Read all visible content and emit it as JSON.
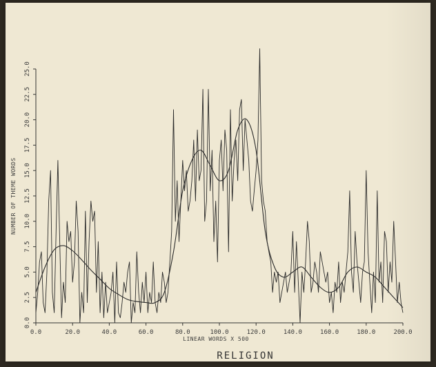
{
  "chart_data": {
    "type": "line",
    "title": "RELIGION",
    "xlabel": "LINEAR WORDS X 500",
    "ylabel": "NUMBER OF THEME WORDS",
    "xlim": [
      0,
      200
    ],
    "ylim": [
      0,
      25
    ],
    "xticks": [
      0,
      20,
      40,
      60,
      80,
      100,
      120,
      140,
      160,
      180,
      200
    ],
    "xtick_labels": [
      "0.0",
      "20.0",
      "40.0",
      "60.0",
      "80.0",
      "100.0",
      "120.0",
      "140.0",
      "160.0",
      "180.0",
      "200.0"
    ],
    "yticks": [
      0,
      2.5,
      5,
      7.5,
      10,
      12.5,
      15,
      17.5,
      20,
      22.5,
      25
    ],
    "ytick_labels": [
      "0.0",
      "2.5",
      "5.0",
      "7.5",
      "10.0",
      "12.5",
      "15.0",
      "17.5",
      "20.0",
      "22.5",
      "25.0"
    ],
    "grid": false,
    "series": [
      {
        "x": [
          0,
          1,
          2,
          3,
          4,
          5,
          6,
          7,
          8,
          9,
          10,
          11,
          12,
          13,
          14,
          15,
          16,
          17,
          18,
          19,
          20,
          21,
          22,
          23,
          24,
          25,
          26,
          27,
          28,
          29,
          30,
          31,
          32,
          33,
          34,
          35,
          36,
          37,
          38,
          39,
          40,
          41,
          42,
          43,
          44,
          45,
          46,
          47,
          48,
          49,
          50,
          51,
          52,
          53,
          54,
          55,
          56,
          57,
          58,
          59,
          60,
          61,
          62,
          63,
          64,
          65,
          66,
          67,
          68,
          69,
          70,
          71,
          72,
          73,
          74,
          75,
          76,
          77,
          78,
          79,
          80,
          81,
          82,
          83,
          84,
          85,
          86,
          87,
          88,
          89,
          90,
          91,
          92,
          93,
          94,
          95,
          96,
          97,
          98,
          99,
          100,
          101,
          102,
          103,
          104,
          105,
          106,
          107,
          108,
          109,
          110,
          111,
          112,
          113,
          114,
          115,
          116,
          117,
          118,
          119,
          120,
          121,
          122,
          123,
          124,
          125,
          126,
          127,
          128,
          129,
          130,
          131,
          132,
          133,
          134,
          135,
          136,
          137,
          138,
          139,
          140,
          141,
          142,
          143,
          144,
          145,
          146,
          147,
          148,
          149,
          150,
          151,
          152,
          153,
          154,
          155,
          156,
          157,
          158,
          159,
          160,
          161,
          162,
          163,
          164,
          165,
          166,
          167,
          168,
          169,
          170,
          171,
          172,
          173,
          174,
          175,
          176,
          177,
          178,
          179,
          180,
          181,
          182,
          183,
          184,
          185,
          186,
          187,
          188,
          189,
          190,
          191,
          192,
          193,
          194,
          195,
          196,
          197,
          198,
          199,
          200
        ],
        "values": [
          1,
          3,
          6,
          7,
          2,
          1,
          5,
          12,
          15,
          3,
          1,
          9,
          16,
          8,
          0.5,
          4,
          2,
          10,
          8,
          9,
          4,
          6,
          12,
          9,
          0,
          3,
          1,
          11,
          2,
          8,
          12,
          10,
          11,
          3,
          8,
          1,
          5,
          0.5,
          4,
          1,
          2,
          3,
          5,
          0,
          6,
          1,
          0.5,
          2,
          4,
          3,
          5,
          6,
          0,
          2,
          1,
          7,
          3,
          1,
          4,
          2,
          5,
          1,
          3,
          2,
          6,
          2,
          1,
          3,
          2,
          5,
          4,
          2,
          3,
          6,
          9,
          21,
          10,
          14,
          8,
          12,
          16,
          13,
          15,
          11,
          12,
          14,
          18,
          12,
          19,
          14,
          15,
          23,
          10,
          12,
          23,
          13,
          17,
          8,
          12,
          6,
          16,
          18,
          13,
          19,
          17,
          7,
          21,
          12,
          16,
          18,
          14,
          21,
          22,
          15,
          20,
          18,
          16,
          12,
          11,
          13,
          15,
          18,
          27,
          14,
          12,
          11,
          8,
          7,
          6,
          3,
          5,
          4,
          5,
          2,
          3,
          4,
          5,
          3,
          4,
          5,
          9,
          3,
          8,
          4,
          0,
          5,
          3,
          6,
          10,
          8,
          3,
          4,
          6,
          5,
          3,
          7,
          6,
          5,
          4,
          5,
          2,
          3,
          1,
          4,
          3,
          6,
          2,
          4,
          3,
          5,
          7,
          13,
          5,
          3,
          9,
          6,
          4,
          2,
          5,
          6,
          15,
          7,
          4,
          1,
          5,
          2,
          13,
          4,
          6,
          2,
          9,
          8,
          3,
          6,
          4,
          10,
          6,
          2,
          4,
          2,
          1
        ],
        "smooth_x": [
          0,
          5,
          10,
          15,
          20,
          25,
          30,
          35,
          40,
          45,
          50,
          55,
          60,
          65,
          70,
          75,
          80,
          85,
          90,
          95,
          100,
          105,
          110,
          115,
          120,
          125,
          130,
          135,
          140,
          145,
          150,
          155,
          160,
          165,
          170,
          175,
          180,
          185,
          190,
          195,
          200
        ],
        "smooth_values": [
          3,
          5.5,
          7.2,
          7.6,
          7.1,
          6.2,
          5.2,
          4.3,
          3.4,
          2.8,
          2.3,
          2.1,
          2.0,
          2.0,
          3,
          7,
          13,
          16,
          17,
          15.5,
          14,
          15,
          19,
          20,
          17,
          9,
          5.5,
          4.5,
          5,
          5.5,
          4.5,
          3.5,
          3,
          3.5,
          5,
          5.5,
          5,
          4.5,
          3.5,
          2.5,
          1.5
        ]
      }
    ]
  }
}
